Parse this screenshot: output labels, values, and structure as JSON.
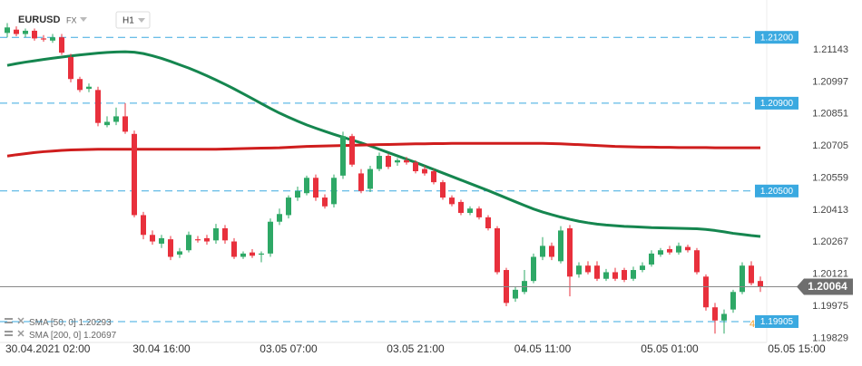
{
  "header": {
    "symbol": "EURUSD",
    "market": "FX",
    "timeframe": "H1"
  },
  "chart_data": {
    "type": "candlestick",
    "categories": [
      null,
      null,
      null,
      "30.04.2021 02:00",
      null,
      null,
      null,
      null,
      null,
      null,
      null,
      null,
      null,
      null,
      null,
      null,
      null,
      "30.04 16:00",
      null,
      null,
      null,
      null,
      null,
      null,
      null,
      null,
      null,
      null,
      null,
      null,
      null,
      "03.05 07:00",
      null,
      null,
      null,
      null,
      null,
      null,
      null,
      null,
      null,
      null,
      null,
      null,
      null,
      "03.05 21:00",
      null,
      null,
      null,
      null,
      null,
      null,
      null,
      null,
      null,
      null,
      null,
      null,
      null,
      "04.05 11:00",
      null,
      null,
      null,
      null,
      null,
      null,
      null,
      null,
      null,
      null,
      null,
      null,
      null,
      "05.05 01:00",
      null,
      null,
      null,
      null,
      null,
      null,
      null,
      null,
      null,
      null,
      null,
      null,
      null,
      "05.05 15:00"
    ],
    "candles": [
      [
        1.2122,
        1.21265,
        1.212,
        1.21245
      ],
      [
        1.21235,
        1.2125,
        1.21205,
        1.21215
      ],
      [
        1.21215,
        1.2124,
        1.212,
        1.2123
      ],
      [
        1.2123,
        1.2124,
        1.21185,
        1.21195
      ],
      [
        1.21195,
        1.2121,
        1.2118,
        1.2119
      ],
      [
        1.21185,
        1.21215,
        1.21175,
        1.212
      ],
      [
        1.212,
        1.21215,
        1.2112,
        1.2113
      ],
      [
        1.2111,
        1.21125,
        1.20995,
        1.2101
      ],
      [
        1.2101,
        1.2102,
        1.2095,
        1.2096
      ],
      [
        1.20965,
        1.2099,
        1.2095,
        1.20975
      ],
      [
        1.2096,
        1.20975,
        1.20795,
        1.2081
      ],
      [
        1.208,
        1.2084,
        1.2079,
        1.20815
      ],
      [
        1.20815,
        1.2088,
        1.208,
        1.2084
      ],
      [
        1.2084,
        1.209,
        1.2076,
        1.2077
      ],
      [
        1.2076,
        1.20775,
        1.2038,
        1.2039
      ],
      [
        1.2039,
        1.20405,
        1.2028,
        1.203
      ],
      [
        1.203,
        1.2032,
        1.20255,
        1.2027
      ],
      [
        1.2026,
        1.203,
        1.2024,
        1.20285
      ],
      [
        1.2028,
        1.20295,
        1.20185,
        1.202
      ],
      [
        1.2021,
        1.2024,
        1.20195,
        1.20225
      ],
      [
        1.2023,
        1.20315,
        1.2022,
        1.203
      ],
      [
        1.2028,
        1.20295,
        1.20265,
        1.20275
      ],
      [
        1.20285,
        1.203,
        1.20255,
        1.2027
      ],
      [
        1.20275,
        1.2035,
        1.2026,
        1.2033
      ],
      [
        1.2033,
        1.20345,
        1.2026,
        1.20275
      ],
      [
        1.2027,
        1.20285,
        1.2019,
        1.202
      ],
      [
        1.202,
        1.20225,
        1.2019,
        1.20215
      ],
      [
        1.2022,
        1.20235,
        1.20195,
        1.20205
      ],
      [
        1.2021,
        1.20225,
        1.20175,
        1.20215
      ],
      [
        1.20215,
        1.20375,
        1.202,
        1.2036
      ],
      [
        1.2036,
        1.2042,
        1.20345,
        1.20395
      ],
      [
        1.2039,
        1.2048,
        1.20375,
        1.2047
      ],
      [
        1.2047,
        1.2052,
        1.20455,
        1.205
      ],
      [
        1.2049,
        1.2057,
        1.2048,
        1.2056
      ],
      [
        1.2056,
        1.20575,
        1.20455,
        1.2047
      ],
      [
        1.2047,
        1.20485,
        1.2042,
        1.2043
      ],
      [
        1.2044,
        1.20575,
        1.20425,
        1.2056
      ],
      [
        1.2057,
        1.2077,
        1.20555,
        1.2075
      ],
      [
        1.2075,
        1.2076,
        1.2061,
        1.2062
      ],
      [
        1.2058,
        1.206,
        1.2049,
        1.205
      ],
      [
        1.2051,
        1.20615,
        1.20495,
        1.206
      ],
      [
        1.206,
        1.20675,
        1.2059,
        1.2066
      ],
      [
        1.2066,
        1.2067,
        1.206,
        1.2061
      ],
      [
        1.2063,
        1.2065,
        1.20615,
        1.2064
      ],
      [
        1.2064,
        1.20655,
        1.2062,
        1.2063
      ],
      [
        1.2063,
        1.2064,
        1.2058,
        1.2059
      ],
      [
        1.206,
        1.20615,
        1.2057,
        1.2058
      ],
      [
        1.2059,
        1.206,
        1.2053,
        1.2054
      ],
      [
        1.2054,
        1.2055,
        1.2046,
        1.2047
      ],
      [
        1.2047,
        1.2048,
        1.2043,
        1.2044
      ],
      [
        1.2045,
        1.2046,
        1.2039,
        1.204
      ],
      [
        1.204,
        1.2043,
        1.2039,
        1.2042
      ],
      [
        1.2042,
        1.2043,
        1.2037,
        1.2038
      ],
      [
        1.2038,
        1.2039,
        1.2032,
        1.2033
      ],
      [
        1.2033,
        1.2034,
        1.2012,
        1.2013
      ],
      [
        1.2014,
        1.2015,
        1.19975,
        1.1999
      ],
      [
        1.2001,
        1.20065,
        1.19995,
        1.2005
      ],
      [
        1.2004,
        1.2014,
        1.2003,
        1.2009
      ],
      [
        1.2009,
        1.20215,
        1.2008,
        1.202
      ],
      [
        1.202,
        1.2029,
        1.20185,
        1.2025
      ],
      [
        1.2025,
        1.20265,
        1.20185,
        1.202
      ],
      [
        1.2018,
        1.2034,
        1.2017,
        1.2032
      ],
      [
        1.2033,
        1.20345,
        1.2002,
        1.2011
      ],
      [
        1.2012,
        1.20175,
        1.20105,
        1.2016
      ],
      [
        1.2016,
        1.2018,
        1.2012,
        1.2013
      ],
      [
        1.2016,
        1.2018,
        1.2009,
        1.201
      ],
      [
        1.201,
        1.20145,
        1.2009,
        1.2013
      ],
      [
        1.2013,
        1.2015,
        1.2009,
        1.201
      ],
      [
        1.2014,
        1.2015,
        1.20085,
        1.20095
      ],
      [
        1.201,
        1.20155,
        1.2009,
        1.2014
      ],
      [
        1.2014,
        1.20175,
        1.2013,
        1.2016
      ],
      [
        1.20165,
        1.2023,
        1.20155,
        1.20215
      ],
      [
        1.2021,
        1.2024,
        1.202,
        1.2023
      ],
      [
        1.20235,
        1.2025,
        1.2021,
        1.2022
      ],
      [
        1.2022,
        1.20265,
        1.2021,
        1.2025
      ],
      [
        1.20245,
        1.20255,
        1.2022,
        1.2023
      ],
      [
        1.2023,
        1.2024,
        1.2012,
        1.2013
      ],
      [
        1.2011,
        1.2012,
        1.19955,
        1.1997
      ],
      [
        1.1997,
        1.1999,
        1.1985,
        1.1991
      ],
      [
        1.1991,
        1.1996,
        1.1985,
        1.1994
      ],
      [
        1.1996,
        1.2005,
        1.19945,
        1.2004
      ],
      [
        1.2004,
        1.20175,
        1.2003,
        1.2016
      ],
      [
        1.2016,
        1.2018,
        1.2007,
        1.2008
      ],
      [
        1.2009,
        1.2011,
        1.2004,
        1.20064
      ],
      null,
      null,
      null,
      null
    ],
    "up_color": "#2ea866",
    "down_color": "#e8303c",
    "series": [
      {
        "name": "SMA [50, 0]",
        "color": "#15864f",
        "values": [
          1.21072,
          1.2108,
          1.21087,
          1.21093,
          1.21099,
          1.21105,
          1.2111,
          1.21115,
          1.2112,
          1.21124,
          1.21128,
          1.21131,
          1.21133,
          1.21134,
          1.21132,
          1.21126,
          1.21116,
          1.21104,
          1.2109,
          1.21075,
          1.2106,
          1.21043,
          1.21025,
          1.21006,
          1.20986,
          1.20965,
          1.20943,
          1.20921,
          1.20898,
          1.20876,
          1.20855,
          1.20836,
          1.20818,
          1.20801,
          1.20786,
          1.20772,
          1.20758,
          1.20745,
          1.20732,
          1.20719,
          1.20705,
          1.2069,
          1.20675,
          1.2066,
          1.20645,
          1.2063,
          1.20614,
          1.20598,
          1.20582,
          1.20566,
          1.2055,
          1.20534,
          1.20518,
          1.20502,
          1.20485,
          1.20468,
          1.20451,
          1.20434,
          1.20418,
          1.20404,
          1.20392,
          1.20381,
          1.20371,
          1.20362,
          1.20355,
          1.20349,
          1.20345,
          1.20342,
          1.20339,
          1.20337,
          1.20335,
          1.20333,
          1.20332,
          1.20331,
          1.2033,
          1.20329,
          1.20328,
          1.20325,
          1.2032,
          1.20314,
          1.20307,
          1.20302,
          1.20297,
          1.20293,
          null,
          null,
          null,
          null
        ]
      },
      {
        "name": "SMA [200, 0]",
        "color": "#cf1d1d",
        "values": [
          1.20659,
          1.20665,
          1.2067,
          1.20675,
          1.20679,
          1.20682,
          1.20685,
          1.20687,
          1.20688,
          1.20689,
          1.2069,
          1.2069,
          1.2069,
          1.2069,
          1.2069,
          1.2069,
          1.2069,
          1.2069,
          1.2069,
          1.2069,
          1.2069,
          1.2069,
          1.2069,
          1.2069,
          1.20691,
          1.20692,
          1.20693,
          1.20694,
          1.20695,
          1.20696,
          1.20697,
          1.20699,
          1.20701,
          1.20703,
          1.20704,
          1.20705,
          1.20706,
          1.20707,
          1.20708,
          1.20709,
          1.2071,
          1.20711,
          1.20712,
          1.20713,
          1.20714,
          1.20715,
          1.20715,
          1.20716,
          1.20716,
          1.20717,
          1.20717,
          1.20717,
          1.20717,
          1.20717,
          1.20717,
          1.20717,
          1.20717,
          1.20717,
          1.20717,
          1.20717,
          1.20716,
          1.20715,
          1.20713,
          1.20711,
          1.20709,
          1.20707,
          1.20705,
          1.20703,
          1.20702,
          1.20701,
          1.207,
          1.207,
          1.20699,
          1.20699,
          1.20698,
          1.20698,
          1.20698,
          1.20698,
          1.20697,
          1.20697,
          1.20697,
          1.20697,
          1.20697,
          1.20697,
          null,
          null,
          null,
          null
        ]
      }
    ],
    "levels": [
      {
        "value": 1.212,
        "label": "1.21200"
      },
      {
        "value": 1.209,
        "label": "1.20900"
      },
      {
        "value": 1.205,
        "label": "1.20500"
      },
      1.19905
    ],
    "level_color": "#3aa9e0",
    "annotation": "4",
    "ylim": [
      1.1981,
      1.2137
    ],
    "yticks": [
      1.21143,
      1.20997,
      1.20851,
      1.20705,
      1.20559,
      1.20413,
      1.20267,
      1.20121,
      1.19975,
      1.19829
    ],
    "grid": false
  }
}
